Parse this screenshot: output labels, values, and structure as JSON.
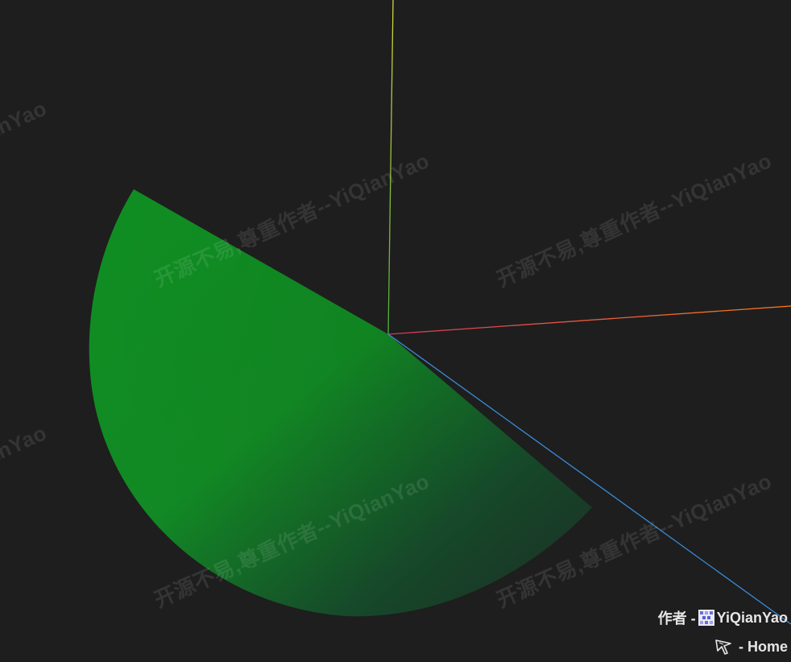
{
  "watermark": {
    "text": "开源不易,尊重作者--YiQianYao"
  },
  "credits": {
    "author_prefix": "作者 -",
    "author_name": "YiQianYao",
    "home_label": "- Home",
    "avatar_icon": "pixel-avatar-icon",
    "home_icon": "cursor-icon"
  },
  "scene": {
    "background": "#1e1e1e",
    "sector_color_bright": "#0f8f22",
    "sector_color_dark": "#1c2c24",
    "axis_y_color": "#b9d23a",
    "axis_x_color": "#ff7a1a",
    "axis_z_color": "#3a8ad8"
  }
}
